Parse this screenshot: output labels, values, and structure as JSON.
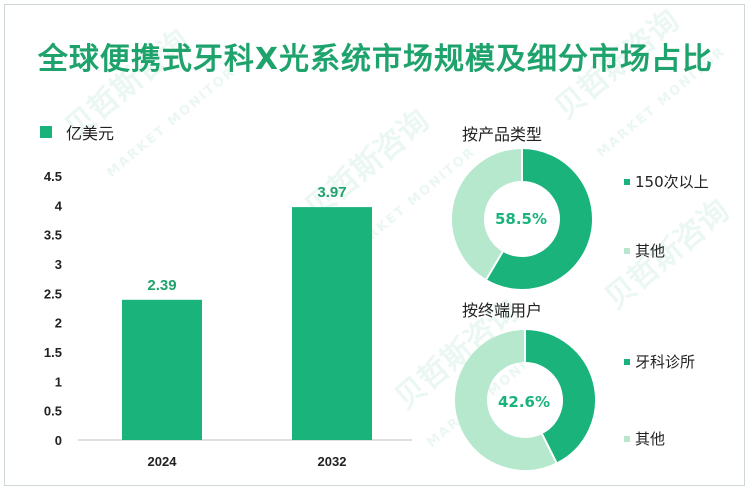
{
  "title": "全球便携式牙科X光系统市场规模及细分市场占比",
  "watermark": {
    "cn": "贝哲斯咨询",
    "en": "MARKET MONITOR"
  },
  "colors": {
    "primary": "#1bb37c",
    "secondary": "#b5e8cd",
    "title": "#1fa36d"
  },
  "bar_chart": {
    "legend_label": "亿美元"
  },
  "pie_sections": [
    {
      "title": "按产品类型",
      "center_label": "58.5%",
      "legend": [
        {
          "label": "150次以上",
          "color": "#1bb37c"
        },
        {
          "label": "其他",
          "color": "#b5e8cd"
        }
      ]
    },
    {
      "title": "按终端用户",
      "center_label": "42.6%",
      "legend": [
        {
          "label": "牙科诊所",
          "color": "#1bb37c"
        },
        {
          "label": "其他",
          "color": "#b5e8cd"
        }
      ]
    }
  ],
  "chart_data": [
    {
      "type": "bar",
      "categories": [
        "2024",
        "2032"
      ],
      "values": [
        2.39,
        3.97
      ],
      "series": [
        {
          "name": "亿美元",
          "values": [
            2.39,
            3.97
          ]
        }
      ],
      "ylim": [
        0,
        4.5
      ],
      "yticks": [
        "0",
        "0.5",
        "1",
        "1.5",
        "2",
        "2.5",
        "3",
        "3.5",
        "4",
        "4.5"
      ],
      "data_labels": [
        "2.39",
        "3.97"
      ],
      "grid": false,
      "legend_position": "top-left"
    },
    {
      "type": "pie",
      "title": "按产品类型",
      "categories": [
        "150次以上",
        "其他"
      ],
      "values": [
        58.5,
        41.5
      ],
      "center_label": "58.5%"
    },
    {
      "type": "pie",
      "title": "按终端用户",
      "categories": [
        "牙科诊所",
        "其他"
      ],
      "values": [
        42.6,
        57.4
      ],
      "center_label": "42.6%"
    }
  ]
}
